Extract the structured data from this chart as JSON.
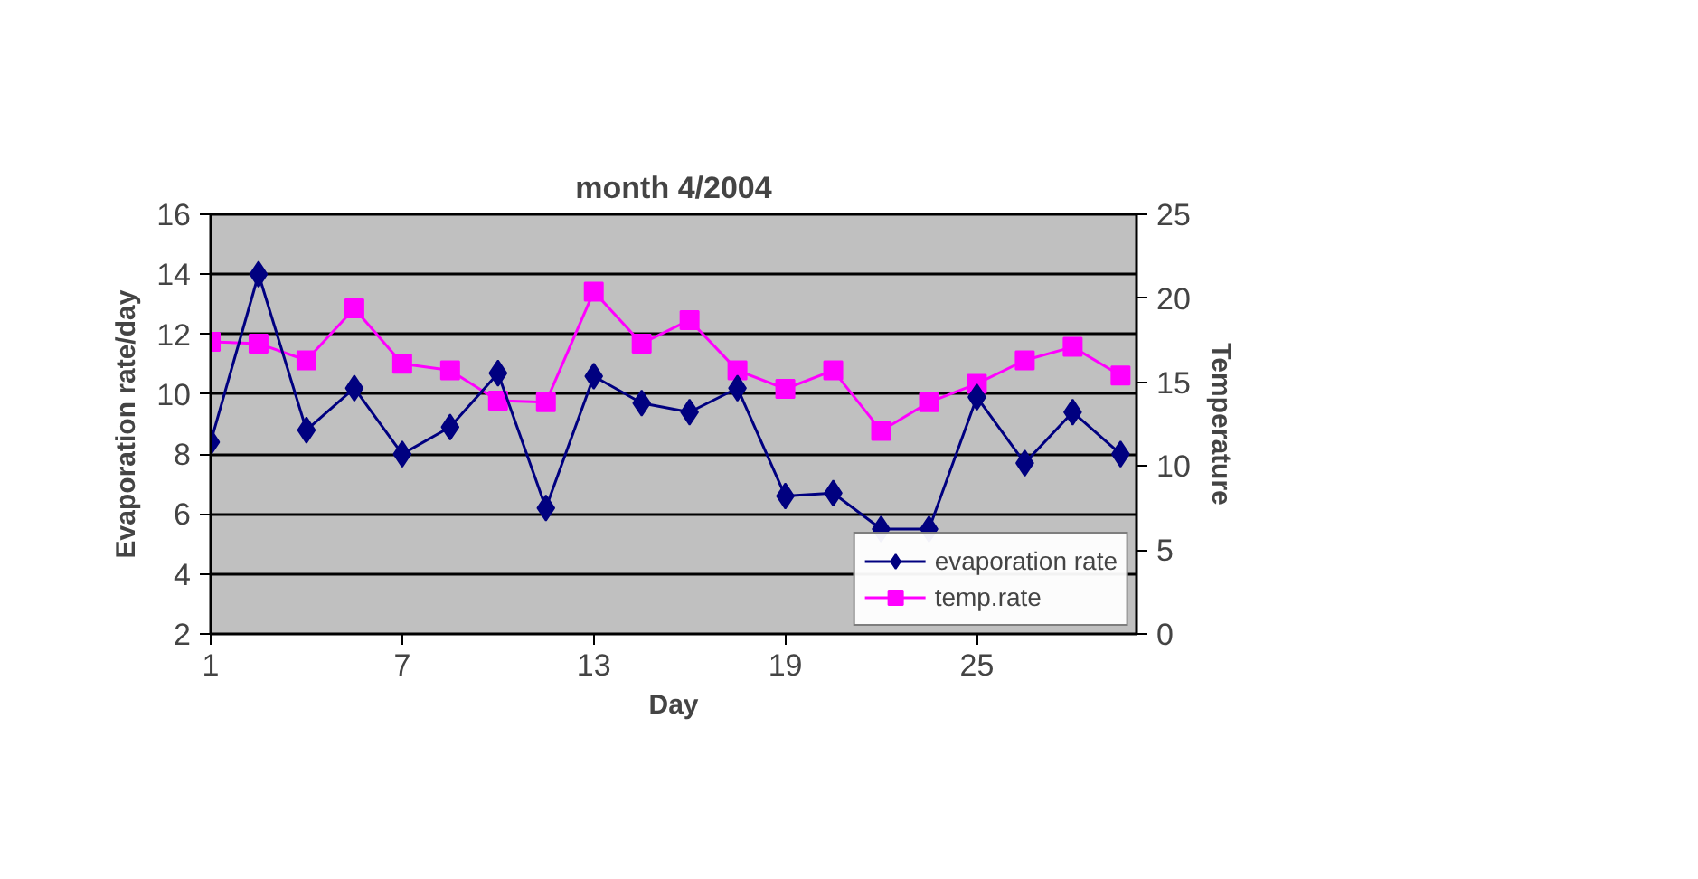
{
  "chart_data": {
    "type": "line",
    "title": "month 4/2004",
    "xlabel": "Day",
    "ylabel": "Evaporation rate/day",
    "y2label": "Temperature",
    "x": [
      1,
      2.5,
      4,
      5.5,
      7,
      8.5,
      10,
      11.5,
      13,
      14.5,
      16,
      17.5,
      19,
      20.5,
      22,
      23.5,
      25,
      26.5,
      28,
      29.5
    ],
    "xlim": [
      1,
      30
    ],
    "xticks": [
      1,
      7,
      13,
      19,
      25
    ],
    "ylim": [
      2,
      16
    ],
    "yticks": [
      2,
      4,
      6,
      8,
      10,
      12,
      14,
      16
    ],
    "y2lim": [
      0,
      25
    ],
    "y2ticks": [
      0,
      5,
      10,
      15,
      20,
      25
    ],
    "grid": "y",
    "legend": "bottom right",
    "series": [
      {
        "name": "evaporation rate",
        "color": "#000080",
        "marker": "diamond",
        "values": [
          8.4,
          14.0,
          8.8,
          10.2,
          8.0,
          8.9,
          10.7,
          6.2,
          10.6,
          9.7,
          9.4,
          10.2,
          6.6,
          6.7,
          5.5,
          5.5,
          9.9,
          7.7,
          9.4,
          8.0
        ]
      },
      {
        "name": "temp.rate",
        "color": "#ff00ff",
        "marker": "square",
        "axis": "y2",
        "values": [
          17.4,
          17.3,
          16.3,
          19.4,
          16.1,
          15.7,
          13.9,
          13.8,
          20.4,
          17.3,
          18.7,
          15.7,
          14.6,
          15.7,
          12.1,
          13.8,
          14.9,
          16.3,
          17.1,
          15.4
        ]
      }
    ]
  }
}
